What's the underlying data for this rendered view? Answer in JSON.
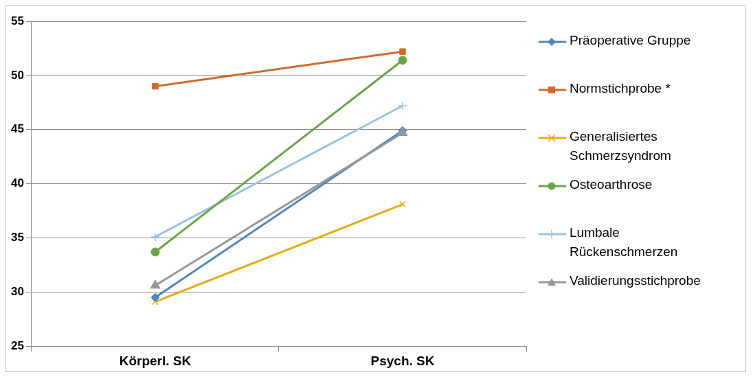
{
  "chart_data": {
    "type": "line",
    "categories": [
      "Körperl. SK",
      "Psych. SK"
    ],
    "series": [
      {
        "name": "Präoperative Gruppe",
        "color": "#4a86c0",
        "marker": "diamond",
        "values": [
          29.5,
          44.9
        ]
      },
      {
        "name": "Normstichprobe *",
        "color": "#d2692a",
        "marker": "square",
        "values": [
          49.0,
          52.2
        ]
      },
      {
        "name": "Generalisiertes Schmerzsyndrom",
        "color": "#e6ac10",
        "marker": "cross",
        "values": [
          29.1,
          38.1
        ]
      },
      {
        "name": "Osteoarthrose",
        "color": "#6aa544",
        "marker": "circle",
        "values": [
          33.7,
          51.4
        ]
      },
      {
        "name": "Lumbale Rückenschmerzen",
        "color": "#9dc0e4",
        "marker": "plus",
        "values": [
          35.1,
          47.2
        ]
      },
      {
        "name": "Validierungsstichprobe",
        "color": "#979797",
        "marker": "triangle",
        "values": [
          30.6,
          44.7
        ]
      }
    ],
    "ylim": [
      25,
      55
    ],
    "yticks": [
      25,
      30,
      35,
      40,
      45,
      50,
      55
    ],
    "grid": "y",
    "legend": "right",
    "line_style": "solid"
  }
}
